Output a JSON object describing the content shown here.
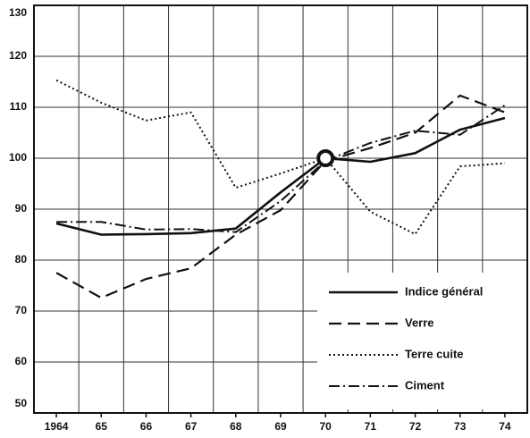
{
  "chart_data": {
    "type": "line",
    "categories": [
      "1964",
      "65",
      "66",
      "67",
      "68",
      "69",
      "70",
      "71",
      "72",
      "73",
      "74"
    ],
    "ylim": [
      50,
      130
    ],
    "yticks": [
      50,
      60,
      70,
      80,
      90,
      100,
      110,
      120,
      130
    ],
    "grid": true,
    "legend": "lower right",
    "highlight": {
      "x": "70",
      "y": 100
    },
    "series": [
      {
        "name": "Indice général",
        "color": "#111111",
        "dash": "solid",
        "values": [
          87.2,
          85,
          85.1,
          85.3,
          86.2,
          93.3,
          100,
          99.3,
          101,
          105.6,
          107.9
        ]
      },
      {
        "name": "Verre",
        "color": "#111111",
        "dash": "dashed",
        "values": [
          77.5,
          72.6,
          76.3,
          78.4,
          85,
          89.8,
          99.5,
          102,
          105,
          112.3,
          109
        ]
      },
      {
        "name": "Terre cuite",
        "color": "#111111",
        "dash": "dotted",
        "values": [
          115.3,
          110.9,
          107.4,
          109,
          94.2,
          97,
          100,
          89.5,
          85.1,
          98.4,
          99
        ]
      },
      {
        "name": "Ciment",
        "color": "#111111",
        "dash": "dashdot",
        "values": [
          87.5,
          87.5,
          86,
          86.1,
          85.5,
          91.6,
          99.5,
          103,
          105.4,
          104.6,
          110.4
        ]
      }
    ]
  }
}
